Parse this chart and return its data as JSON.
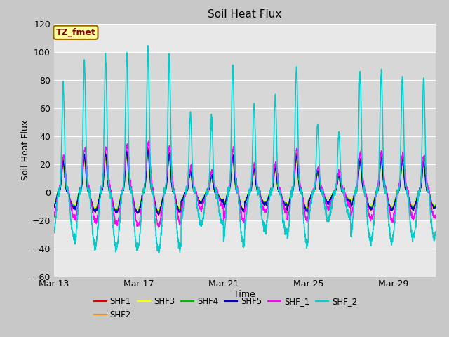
{
  "title": "Soil Heat Flux",
  "xlabel": "Time",
  "ylabel": "Soil Heat Flux",
  "ylim": [
    -60,
    120
  ],
  "yticks": [
    -60,
    -40,
    -20,
    0,
    20,
    40,
    60,
    80,
    100,
    120
  ],
  "xtick_labels": [
    "Mar 13",
    "Mar 17",
    "Mar 21",
    "Mar 25",
    "Mar 29"
  ],
  "xtick_days": [
    0,
    4,
    8,
    12,
    16
  ],
  "fig_bg": "#c8c8c8",
  "plot_bg": "#e8e8e8",
  "band_color": "#d0d0d0",
  "series_colors": {
    "SHF1": "#dd0000",
    "SHF2": "#ff8800",
    "SHF3": "#ffff00",
    "SHF4": "#00bb00",
    "SHF5": "#0000cc",
    "SHF_1": "#ff00ff",
    "SHF_2": "#00cccc"
  },
  "annotation_text": "TZ_fmet",
  "annotation_fg": "#8b0000",
  "annotation_bg": "#ffffa0",
  "annotation_border": "#996600",
  "n_days": 18,
  "n_per_day": 144,
  "peak_day_scales": [
    0.8,
    0.95,
    1.0,
    1.05,
    1.1,
    1.0,
    0.55,
    0.45,
    0.95,
    0.6,
    0.65,
    0.95,
    0.55,
    0.45,
    0.85,
    0.9,
    0.85,
    0.8
  ],
  "shf2_peak_scales": [
    0.78,
    0.95,
    0.98,
    1.0,
    1.05,
    1.0,
    0.58,
    0.55,
    0.92,
    0.65,
    0.7,
    0.92,
    0.5,
    0.43,
    0.87,
    0.88,
    0.82,
    0.82
  ]
}
